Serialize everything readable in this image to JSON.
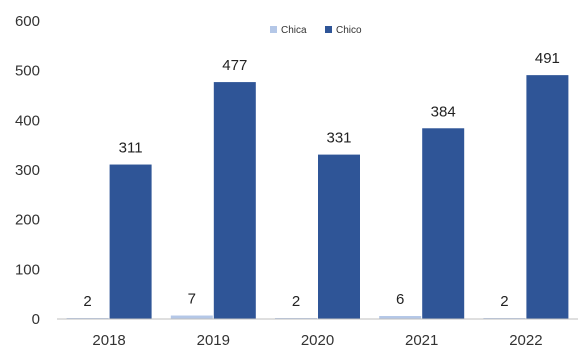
{
  "chart_data": {
    "type": "bar",
    "categories": [
      "2018",
      "2019",
      "2020",
      "2021",
      "2022"
    ],
    "series": [
      {
        "name": "Chica",
        "values": [
          2,
          7,
          2,
          6,
          2
        ],
        "color": "#b4c7e7"
      },
      {
        "name": "Chico",
        "values": [
          311,
          477,
          331,
          384,
          491
        ],
        "color": "#2f5597"
      }
    ],
    "y_ticks": [
      0,
      100,
      200,
      300,
      400,
      500,
      600
    ],
    "ylim": [
      0,
      600
    ],
    "title": "",
    "xlabel": "",
    "ylabel": "",
    "grid": false,
    "legend_position": "top-center"
  }
}
